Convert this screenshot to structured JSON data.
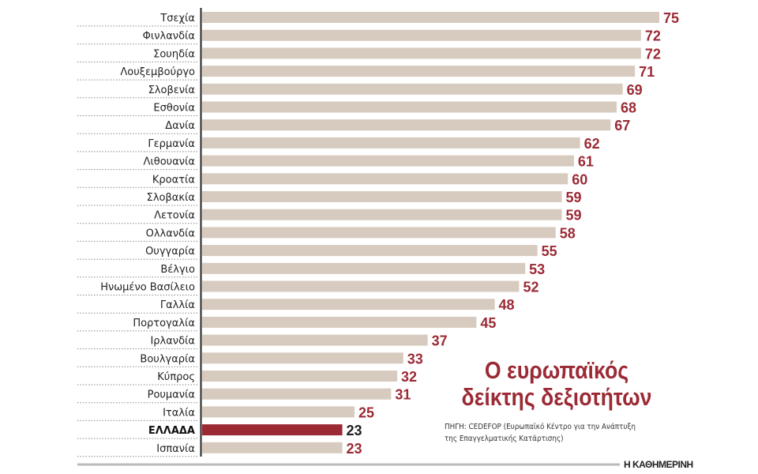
{
  "chart_data": {
    "type": "bar",
    "orientation": "horizontal",
    "title": "Ο ευρωπαϊκός δείκτης δεξιοτήτων",
    "title_lines": [
      "Ο ευρωπαϊκός",
      "δείκτης δεξιοτήτων"
    ],
    "source_lines": [
      "ΠΗΓΗ: CEDEFOP (Ευρωπαϊκό Κέντρο για την Ανάπτυξη",
      "της Επαγγελματικής Κατάρτισης)"
    ],
    "categories": [
      "Τσεχία",
      "Φινλανδία",
      "Σουηδία",
      "Λουξεμβούργο",
      "Σλοβενία",
      "Εσθονία",
      "Δανία",
      "Γερμανία",
      "Λιθουανία",
      "Κροατία",
      "Σλοβακία",
      "Λετονία",
      "Ολλανδία",
      "Ουγγαρία",
      "Βέλγιο",
      "Ηνωμένο Βασίλειο",
      "Γαλλία",
      "Πορτογαλία",
      "Ιρλανδία",
      "Βουλγαρία",
      "Κύπρος",
      "Ρουμανία",
      "Ιταλία",
      "ΕΛΛΑΔΑ",
      "Ισπανία"
    ],
    "values": [
      75,
      72,
      72,
      71,
      69,
      68,
      67,
      62,
      61,
      60,
      59,
      59,
      58,
      55,
      53,
      52,
      48,
      45,
      37,
      33,
      32,
      31,
      25,
      23,
      23
    ],
    "highlight": "ΕΛΛΑΔΑ",
    "xlim": [
      0,
      75
    ],
    "colors": {
      "bar": "#d7cbbf",
      "highlight": "#9b2a35",
      "value_label": "#9b2a35"
    }
  },
  "brand": "Η ΚΑΘΗΜΕΡΙΝΗ"
}
